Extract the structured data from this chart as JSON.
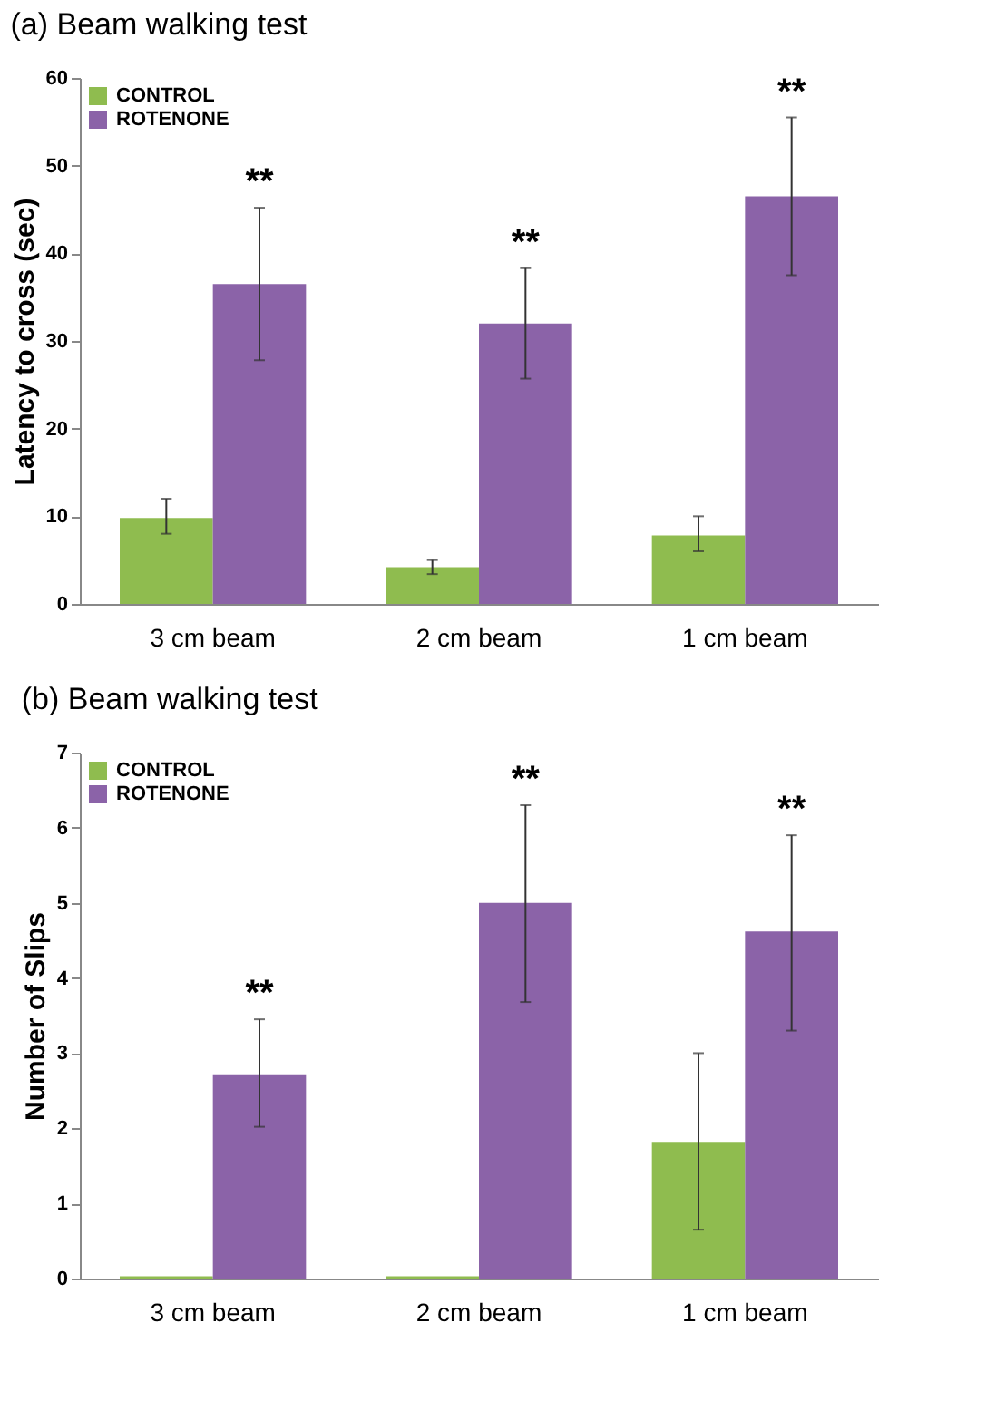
{
  "chart_data": [
    {
      "type": "bar",
      "title": "(a) Beam walking test",
      "ylabel": "Latency to cross (sec)",
      "categories": [
        "3 cm beam",
        "2 cm beam",
        "1 cm beam"
      ],
      "ylim": [
        0,
        60
      ],
      "yticks": [
        0,
        10,
        20,
        30,
        40,
        50,
        60
      ],
      "grid": false,
      "legend": "top left",
      "series": [
        {
          "name": "CONTROL",
          "color": "#8fbc4f",
          "values": [
            9.8,
            4.2,
            7.8
          ],
          "errors": [
            [
              8,
              12
            ],
            [
              3.4,
              5
            ],
            [
              6,
              10
            ]
          ]
        },
        {
          "name": "ROTENONE",
          "color": "#8b63a8",
          "values": [
            36.5,
            32,
            46.5
          ],
          "errors": [
            [
              27.8,
              45.2
            ],
            [
              25.7,
              38.3
            ],
            [
              37.5,
              55.5
            ]
          ]
        }
      ],
      "annotations": [
        "**",
        "**",
        "**"
      ]
    },
    {
      "type": "bar",
      "title": "(b) Beam walking test",
      "ylabel": "Number of Slips",
      "categories": [
        "3 cm beam",
        "2 cm beam",
        "1 cm beam"
      ],
      "ylim": [
        0,
        7
      ],
      "yticks": [
        0,
        1,
        2,
        3,
        4,
        5,
        6,
        7
      ],
      "grid": false,
      "legend": "top left",
      "series": [
        {
          "name": "CONTROL",
          "color": "#8fbc4f",
          "values": [
            0.03,
            0.03,
            1.82
          ],
          "errors": [
            null,
            null,
            [
              0.65,
              3.0
            ]
          ]
        },
        {
          "name": "ROTENONE",
          "color": "#8b63a8",
          "values": [
            2.72,
            5.0,
            4.62
          ],
          "errors": [
            [
              2.02,
              3.45
            ],
            [
              3.68,
              6.3
            ],
            [
              3.3,
              5.9
            ]
          ]
        }
      ],
      "annotations": [
        "**",
        "**",
        "**"
      ]
    }
  ]
}
